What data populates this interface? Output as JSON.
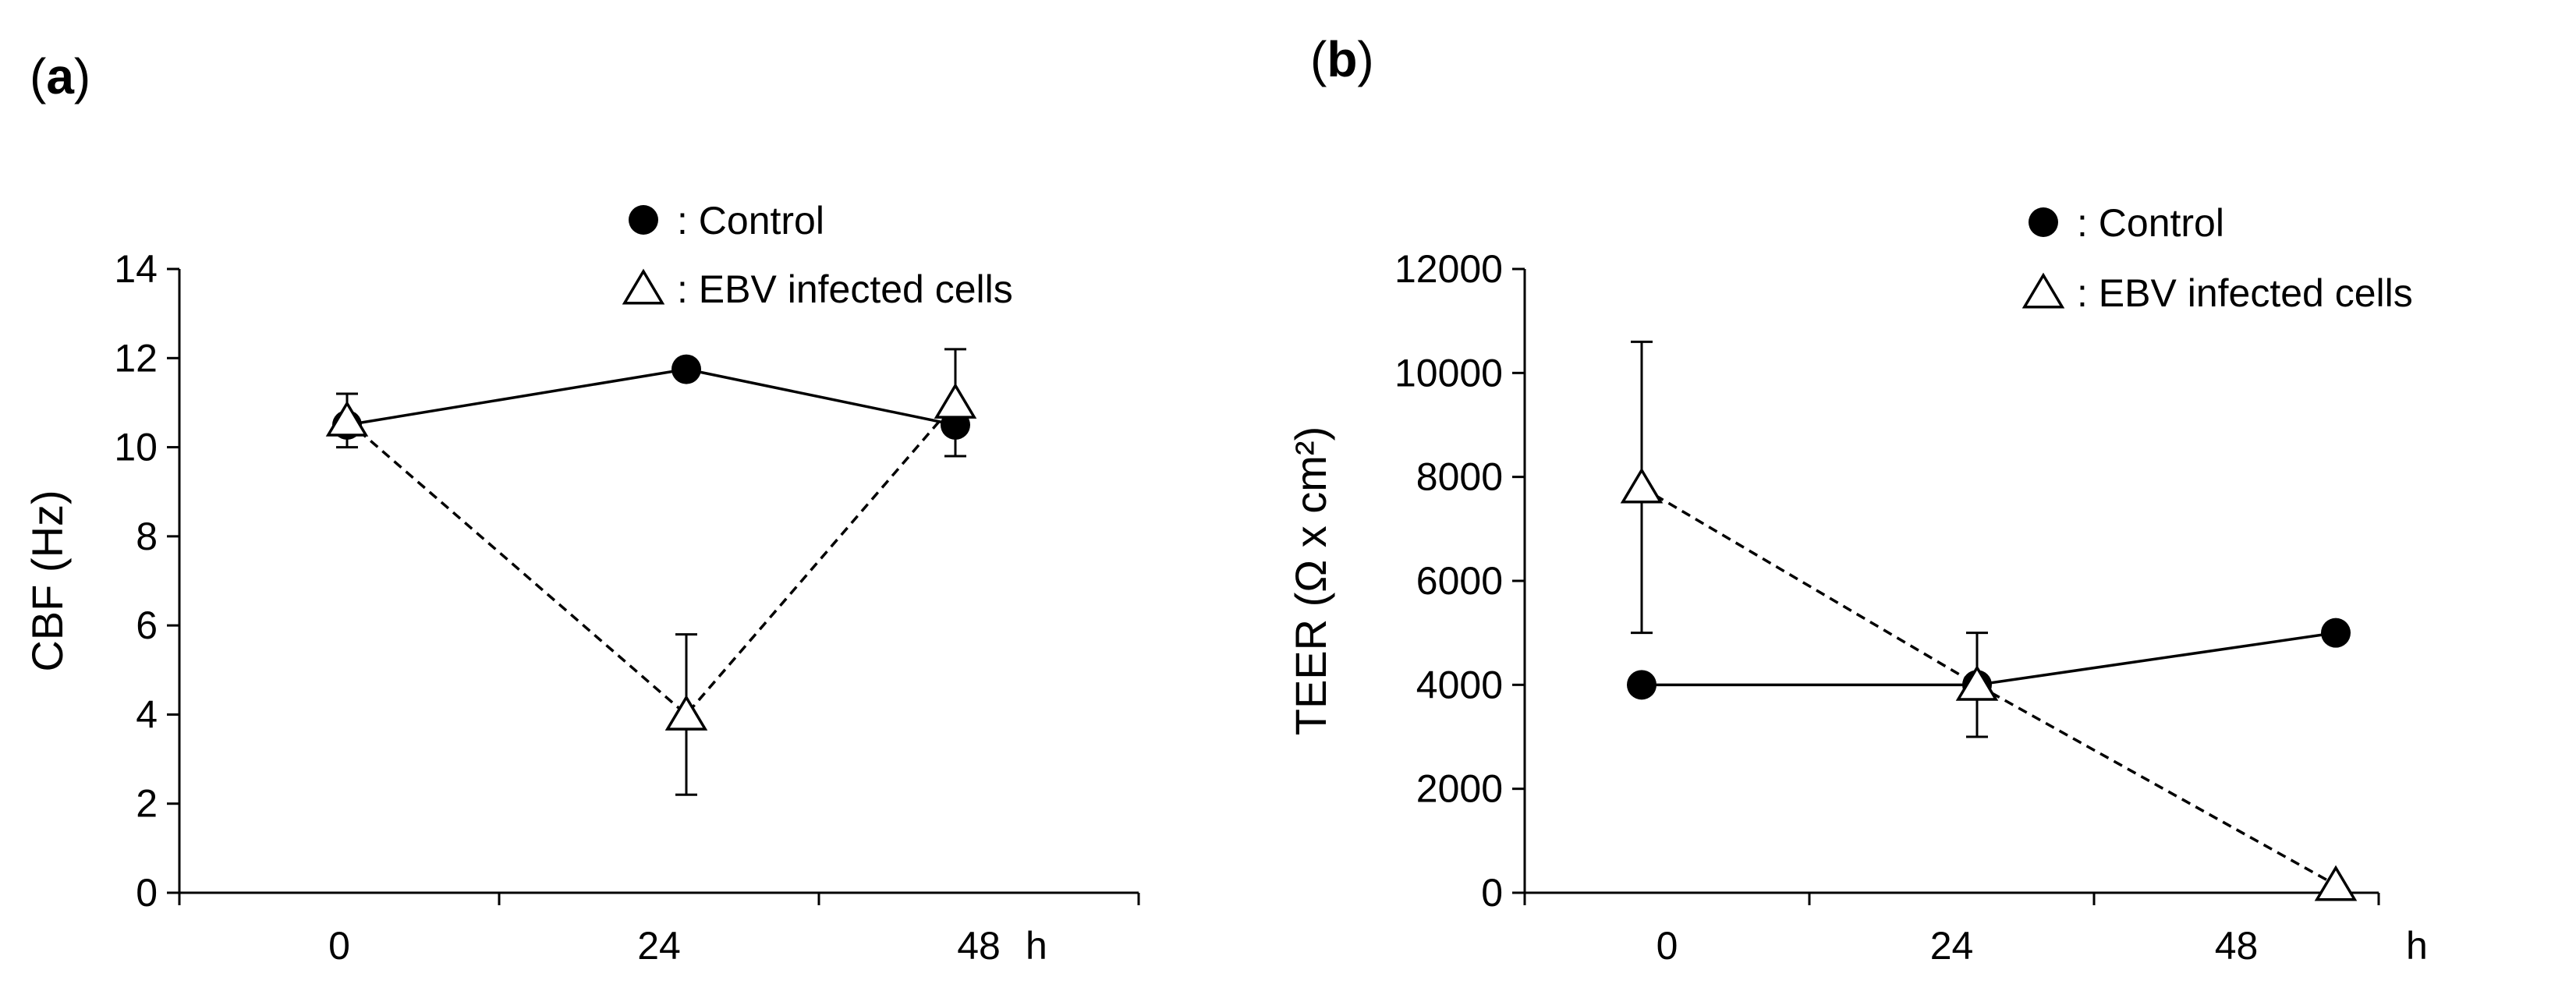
{
  "chart_data": [
    {
      "panel_label": "a",
      "type": "line",
      "title": "",
      "xlabel": "",
      "x_unit_label": "h",
      "ylabel": "CBF (Hz)",
      "ylim": [
        0,
        14
      ],
      "yticks": [
        0,
        2,
        4,
        6,
        8,
        10,
        12,
        14
      ],
      "categories": [
        "0",
        "24",
        "48"
      ],
      "x": [
        0,
        24,
        48
      ],
      "legend": [
        {
          "marker": "filled-circle",
          "label": ": Control"
        },
        {
          "marker": "open-triangle",
          "label": ": EBV infected cells"
        }
      ],
      "series": [
        {
          "name": "Control",
          "marker": "filled-circle",
          "line": "solid",
          "values": [
            10.5,
            11.75,
            10.5
          ],
          "error": [
            0,
            0,
            0
          ]
        },
        {
          "name": "EBV infected cells",
          "marker": "open-triangle",
          "line": "dashed",
          "values": [
            10.6,
            4.0,
            11.0
          ],
          "error": [
            0.6,
            1.8,
            1.2
          ]
        }
      ]
    },
    {
      "panel_label": "b",
      "type": "line",
      "title": "",
      "xlabel": "",
      "x_unit_label": "h",
      "ylabel": "TEER  (Ω x cm²)",
      "ylim": [
        0,
        12000
      ],
      "yticks": [
        0,
        2000,
        4000,
        6000,
        8000,
        10000,
        12000
      ],
      "categories": [
        "0",
        "24",
        "48"
      ],
      "x": [
        0,
        24,
        48
      ],
      "legend": [
        {
          "marker": "filled-circle",
          "label": ": Control"
        },
        {
          "marker": "open-triangle",
          "label": ": EBV infected cells"
        }
      ],
      "series": [
        {
          "name": "Control",
          "marker": "filled-circle",
          "line": "solid",
          "values": [
            4000,
            4000,
            5000
          ],
          "error": [
            0,
            0,
            0
          ]
        },
        {
          "name": "EBV infected cells",
          "marker": "open-triangle",
          "line": "dashed",
          "values": [
            7800,
            4000,
            150
          ],
          "error": [
            2800,
            1000,
            0
          ]
        }
      ]
    }
  ]
}
